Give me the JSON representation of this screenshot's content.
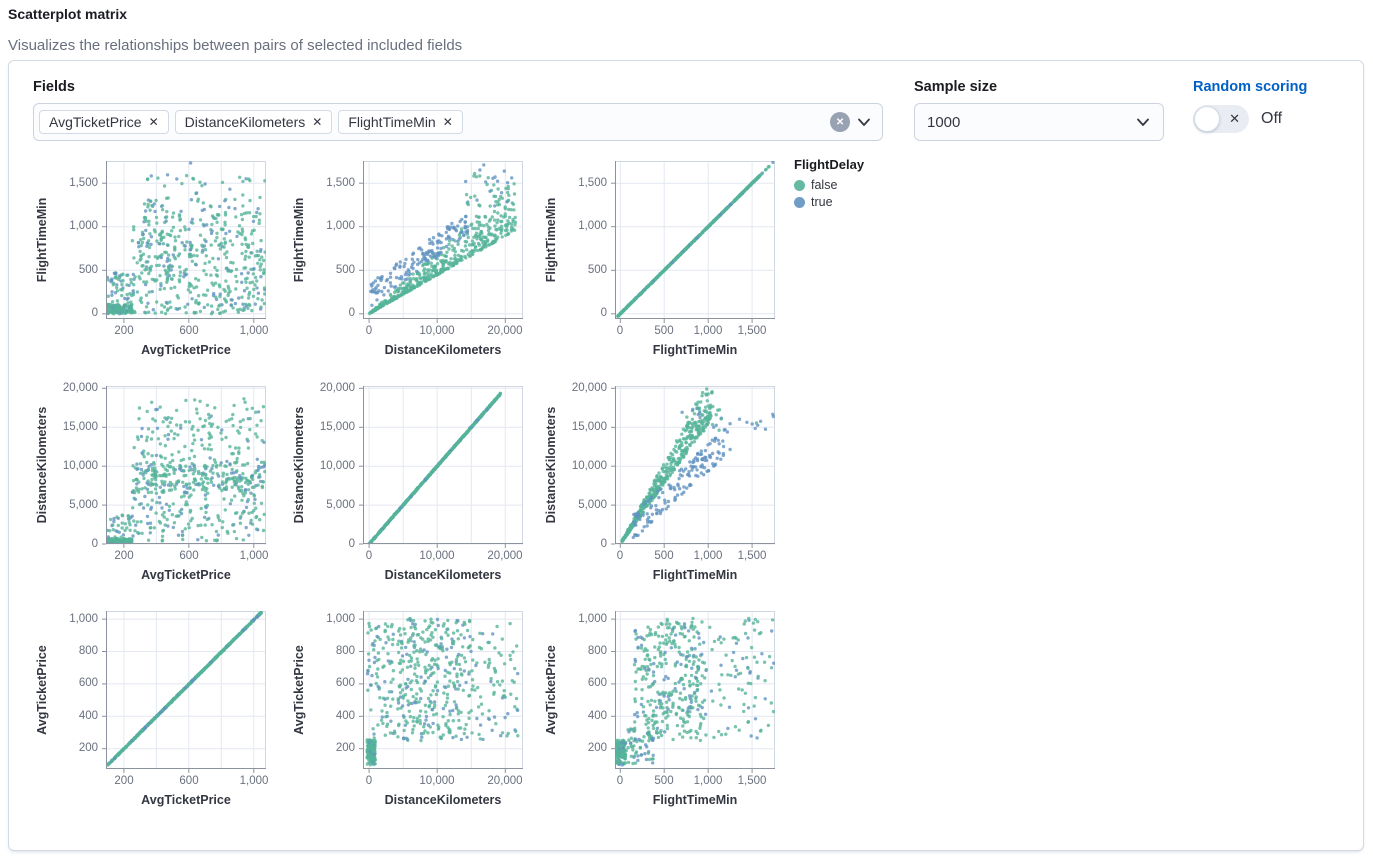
{
  "header": {
    "title": "Scatterplot matrix",
    "subtitle": "Visualizes the relationships between pairs of selected included fields"
  },
  "controls": {
    "fields_label": "Fields",
    "selected_fields": [
      {
        "label": "AvgTicketPrice"
      },
      {
        "label": "DistanceKilometers"
      },
      {
        "label": "FlightTimeMin"
      }
    ],
    "sample_size_label": "Sample size",
    "sample_size_value": "1000",
    "random_scoring_label": "Random scoring",
    "random_scoring_state": "Off",
    "accent_color": "#0061C5"
  },
  "legend": {
    "title": "FlightDelay",
    "items": [
      {
        "label": "false",
        "color": "#54B399"
      },
      {
        "label": "true",
        "color": "#6092C0"
      }
    ]
  },
  "chart_data": {
    "type": "scatter",
    "matrix_fields": [
      "AvgTicketPrice",
      "DistanceKilometers",
      "FlightTimeMin"
    ],
    "color_by": "FlightDelay",
    "classes": {
      "false": "#54B399",
      "true": "#6092C0"
    },
    "sample_size": 1000,
    "axes": {
      "price_x": {
        "domain": [
          90,
          1075
        ],
        "grid": [
          200,
          400,
          600,
          800,
          1000
        ],
        "ticks": [
          {
            "v": 200,
            "label": "200"
          },
          {
            "v": 600,
            "label": "600"
          },
          {
            "v": 1000,
            "label": "1,000"
          }
        ]
      },
      "price_y": {
        "domain": [
          75,
          1050
        ],
        "grid": [
          200,
          400,
          600,
          800,
          1000
        ],
        "ticks": [
          {
            "v": 200,
            "label": "200"
          },
          {
            "v": 400,
            "label": "400"
          },
          {
            "v": 600,
            "label": "600"
          },
          {
            "v": 800,
            "label": "800"
          },
          {
            "v": 1000,
            "label": "1,000"
          }
        ]
      },
      "dist_x": {
        "domain": [
          -900,
          22600
        ],
        "grid": [
          0,
          5000,
          10000,
          15000,
          20000
        ],
        "ticks": [
          {
            "v": 0,
            "label": "0"
          },
          {
            "v": 10000,
            "label": "10,000"
          },
          {
            "v": 20000,
            "label": "20,000"
          }
        ]
      },
      "dist_y": {
        "domain": [
          0,
          20300
        ],
        "grid": [
          0,
          5000,
          10000,
          15000,
          20000
        ],
        "ticks": [
          {
            "v": 0,
            "label": "0"
          },
          {
            "v": 5000,
            "label": "5,000"
          },
          {
            "v": 10000,
            "label": "10,000"
          },
          {
            "v": 15000,
            "label": "15,000"
          },
          {
            "v": 20000,
            "label": "20,000"
          }
        ]
      },
      "time_x": {
        "domain": [
          -60,
          1760
        ],
        "grid": [
          0,
          500,
          1000,
          1500
        ],
        "ticks": [
          {
            "v": 0,
            "label": "0"
          },
          {
            "v": 500,
            "label": "500"
          },
          {
            "v": 1000,
            "label": "1,000"
          },
          {
            "v": 1500,
            "label": "1,500"
          }
        ]
      },
      "time_y": {
        "domain": [
          -60,
          1755
        ],
        "grid": [
          0,
          500,
          1000,
          1500
        ],
        "ticks": [
          {
            "v": 0,
            "label": "0"
          },
          {
            "v": 500,
            "label": "500"
          },
          {
            "v": 1000,
            "label": "1,000"
          },
          {
            "v": 1500,
            "label": "1,500"
          }
        ]
      }
    },
    "charts": [
      {
        "id": "flighttime-vs-price",
        "xlabel": "AvgTicketPrice",
        "ylabel": "FlightTimeMin",
        "xaxis": "price_x",
        "yaxis": "time_y",
        "seed": 11,
        "generators": [
          {
            "kind": "uniform",
            "n": 130,
            "x": [
              95,
              250
            ],
            "y": [
              0,
              110
            ],
            "blue": 0.15
          },
          {
            "kind": "uniform",
            "n": 55,
            "x": [
              95,
              265
            ],
            "y": [
              100,
              480
            ],
            "blue": 0.4
          },
          {
            "kind": "uniform",
            "n": 420,
            "x": [
              250,
              1070
            ],
            "y": [
              0,
              1000
            ],
            "blue": 0.22
          },
          {
            "kind": "uniform",
            "n": 90,
            "x": [
              255,
              1070
            ],
            "y": [
              1000,
              1330
            ],
            "blue": 0.28
          },
          {
            "kind": "uniform",
            "n": 26,
            "x": [
              280,
              1070
            ],
            "y": [
              1330,
              1620
            ],
            "blue": 0.3
          },
          {
            "kind": "uniform",
            "n": 1,
            "x": [
              600,
              615
            ],
            "y": [
              1725,
              1740
            ],
            "blue": 1
          }
        ]
      },
      {
        "id": "flighttime-vs-distance",
        "xlabel": "DistanceKilometers",
        "ylabel": "FlightTimeMin",
        "xaxis": "dist_x",
        "yaxis": "time_y",
        "seed": 22,
        "generators": [
          {
            "kind": "fan",
            "n": 470,
            "x": [
              60,
              21500
            ],
            "slope": [
              0.0447,
              0.072
            ],
            "pw": 2.2,
            "blue": 0
          },
          {
            "kind": "uniform",
            "n": 28,
            "x": [
              14000,
              21500
            ],
            "y": [
              1230,
              1620
            ],
            "blue": 0.3
          },
          {
            "kind": "band",
            "n": 150,
            "x": [
              150,
              14500
            ],
            "intercept": 70,
            "slope": 0.058,
            "spread": 270,
            "blue": 1
          },
          {
            "kind": "uniform",
            "n": 10,
            "x": [
              15000,
              21200
            ],
            "y": [
              1280,
              1730
            ],
            "blue": 0.7
          }
        ]
      },
      {
        "id": "flighttime-vs-flighttime",
        "xlabel": "FlightTimeMin",
        "ylabel": "FlightTimeMin",
        "xaxis": "time_x",
        "yaxis": "time_y",
        "seed": 33,
        "generators": [
          {
            "kind": "line",
            "n": 610,
            "from": [
              -30,
              -30
            ],
            "to": [
              1590,
              1590
            ],
            "jitter": 5,
            "blue": 0.13
          },
          {
            "kind": "line",
            "n": 6,
            "from": [
              1600,
              1600
            ],
            "to": [
              1710,
              1710
            ],
            "jitter": 3,
            "blue": 0.3
          },
          {
            "kind": "uniform",
            "n": 1,
            "x": [
              1735,
              1745
            ],
            "y": [
              1730,
              1745
            ],
            "blue": 1
          }
        ]
      },
      {
        "id": "distance-vs-price",
        "xlabel": "AvgTicketPrice",
        "ylabel": "DistanceKilometers",
        "xaxis": "price_x",
        "yaxis": "dist_y",
        "seed": 44,
        "generators": [
          {
            "kind": "uniform",
            "n": 115,
            "x": [
              95,
              250
            ],
            "y": [
              20,
              700
            ],
            "blue": 0.15
          },
          {
            "kind": "uniform",
            "n": 35,
            "x": [
              95,
              265
            ],
            "y": [
              700,
              3800
            ],
            "blue": 0.3
          },
          {
            "kind": "uniform",
            "n": 290,
            "x": [
              250,
              1070
            ],
            "y": [
              6500,
              10500
            ],
            "blue": 0.22
          },
          {
            "kind": "uniform",
            "n": 135,
            "x": [
              250,
              1070
            ],
            "y": [
              10500,
              17800
            ],
            "blue": 0.18
          },
          {
            "kind": "uniform",
            "n": 8,
            "x": [
              300,
              1000
            ],
            "y": [
              17800,
              19200
            ],
            "blue": 0
          },
          {
            "kind": "uniform",
            "n": 150,
            "x": [
              250,
              1070
            ],
            "y": [
              400,
              6500
            ],
            "blue": 0.25
          }
        ]
      },
      {
        "id": "distance-vs-distance",
        "xlabel": "DistanceKilometers",
        "ylabel": "DistanceKilometers",
        "xaxis": "dist_x",
        "yaxis": "dist_y",
        "seed": 55,
        "generators": [
          {
            "kind": "line",
            "n": 640,
            "from": [
              0,
              0
            ],
            "to": [
              19300,
              19300
            ],
            "jitter": 90,
            "blue": 0.12
          }
        ]
      },
      {
        "id": "distance-vs-flighttime",
        "xlabel": "FlightTimeMin",
        "ylabel": "DistanceKilometers",
        "xaxis": "time_x",
        "yaxis": "dist_y",
        "seed": 66,
        "generators": [
          {
            "kind": "fan",
            "n": 460,
            "x": [
              20,
              1060
            ],
            "slope": [
              15.5,
              21.0
            ],
            "pw": 1.6,
            "xp": 1.3,
            "blue": 0
          },
          {
            "kind": "uniform",
            "n": 25,
            "x": [
              700,
              1150
            ],
            "y": [
              14500,
              17800
            ],
            "blue": 0.3
          },
          {
            "kind": "band",
            "n": 150,
            "x": [
              140,
              1250
            ],
            "intercept": -1200,
            "slope": 10.5,
            "spread": 3600,
            "blue": 1
          },
          {
            "kind": "uniform",
            "n": 10,
            "x": [
              1350,
              1750
            ],
            "y": [
              14500,
              17600
            ],
            "blue": 0.8
          }
        ]
      },
      {
        "id": "price-vs-price",
        "xlabel": "AvgTicketPrice",
        "ylabel": "AvgTicketPrice",
        "xaxis": "price_x",
        "yaxis": "price_y",
        "seed": 77,
        "generators": [
          {
            "kind": "line",
            "n": 640,
            "from": [
              100,
              100
            ],
            "to": [
              1045,
              1040
            ],
            "jitter": 4,
            "blue": 0.12
          }
        ]
      },
      {
        "id": "price-vs-distance",
        "xlabel": "DistanceKilometers",
        "ylabel": "AvgTicketPrice",
        "xaxis": "dist_x",
        "yaxis": "price_y",
        "seed": 88,
        "generators": [
          {
            "kind": "uniform",
            "n": 125,
            "x": [
              -300,
              900
            ],
            "y": [
              100,
              255
            ],
            "blue": 0.12
          },
          {
            "kind": "uniform",
            "n": 60,
            "x": [
              -300,
              2600
            ],
            "y": [
              255,
              1000
            ],
            "blue": 0.3
          },
          {
            "kind": "uniform",
            "n": 315,
            "x": [
              4200,
              13800
            ],
            "y": [
              250,
              1005
            ],
            "blue": 0.22
          },
          {
            "kind": "uniform",
            "n": 110,
            "x": [
              13800,
              22000
            ],
            "y": [
              255,
              1000
            ],
            "blue": 0.18
          },
          {
            "kind": "uniform",
            "n": 30,
            "x": [
              2600,
              4200
            ],
            "y": [
              255,
              1000
            ],
            "blue": 0.2
          }
        ]
      },
      {
        "id": "price-vs-flighttime",
        "xlabel": "FlightTimeMin",
        "ylabel": "AvgTicketPrice",
        "xaxis": "time_x",
        "yaxis": "price_y",
        "seed": 99,
        "generators": [
          {
            "kind": "uniform",
            "n": 120,
            "x": [
              -45,
              60
            ],
            "y": [
              100,
              255
            ],
            "blue": 0.08
          },
          {
            "kind": "uniform",
            "n": 60,
            "x": [
              60,
              380
            ],
            "y": [
              100,
              330
            ],
            "blue": 0.35
          },
          {
            "kind": "uniform",
            "n": 355,
            "x": [
              150,
              980
            ],
            "y": [
              250,
              1005
            ],
            "blue": 0.2
          },
          {
            "kind": "uniform",
            "n": 90,
            "x": [
              980,
              1750
            ],
            "y": [
              250,
              1005
            ],
            "blue": 0.28
          }
        ]
      }
    ]
  }
}
